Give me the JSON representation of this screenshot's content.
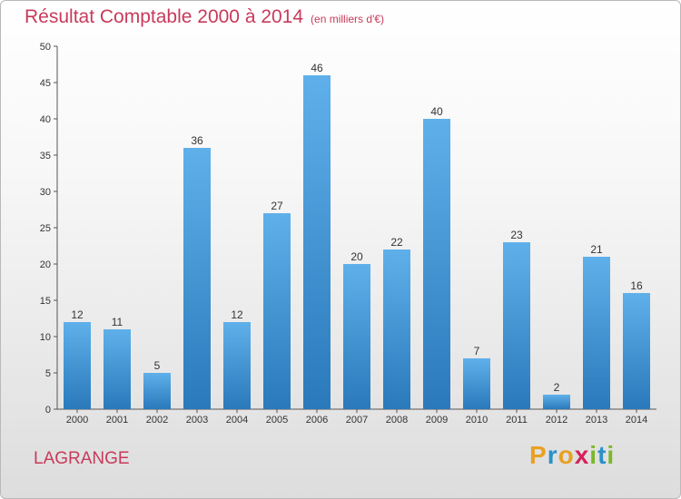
{
  "title": "Résultat Comptable 2000 à 2014",
  "unit_note": "(en milliers d'€)",
  "city": "LAGRANGE",
  "logo": {
    "text": "Proxiti",
    "letters": [
      {
        "ch": "P",
        "color": "#e8a126"
      },
      {
        "ch": "r",
        "color": "#2a90c8"
      },
      {
        "ch": "o",
        "color": "#e8a126"
      },
      {
        "ch": "x",
        "color": "#d4225a"
      },
      {
        "ch": "i",
        "color": "#7ab829"
      },
      {
        "ch": "t",
        "color": "#2a90c8"
      },
      {
        "ch": "i",
        "color": "#7ab829"
      }
    ]
  },
  "colors": {
    "bar_top": "#5fb0ea",
    "bar_bottom": "#2a79bb",
    "title": "#c83a5a"
  },
  "chart_data": {
    "type": "bar",
    "title": "Résultat Comptable 2000 à 2014",
    "categories": [
      "2000",
      "2001",
      "2002",
      "2003",
      "2004",
      "2005",
      "2006",
      "2007",
      "2008",
      "2009",
      "2010",
      "2011",
      "2012",
      "2013",
      "2014"
    ],
    "values": [
      12,
      11,
      5,
      36,
      12,
      27,
      46,
      20,
      22,
      40,
      7,
      23,
      2,
      21,
      16
    ],
    "yticks": [
      0,
      5,
      10,
      15,
      20,
      25,
      30,
      35,
      40,
      45,
      50
    ],
    "ylim": [
      0,
      50
    ],
    "xlabel": "",
    "ylabel": "",
    "grid": false,
    "legend": "none"
  }
}
